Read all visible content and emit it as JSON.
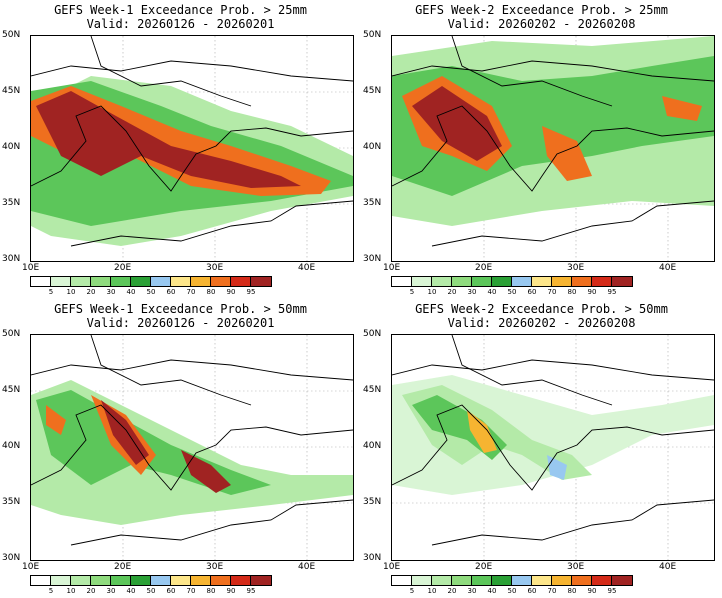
{
  "panels": [
    {
      "title": "GEFS Week-1 Exceedance Prob. > 25mm",
      "valid": "Valid: 20260126 - 20260201"
    },
    {
      "title": "GEFS Week-2 Exceedance Prob. > 25mm",
      "valid": "Valid: 20260202 - 20260208"
    },
    {
      "title": "GEFS Week-1 Exceedance Prob. > 50mm",
      "valid": "Valid: 20260126 - 20260201"
    },
    {
      "title": "GEFS Week-2 Exceedance Prob. > 50mm",
      "valid": "Valid: 20260202 - 20260208"
    }
  ],
  "lat_labels": [
    "50N",
    "45N",
    "40N",
    "35N",
    "30N"
  ],
  "lon_labels": [
    "10E",
    "20E",
    "30E",
    "40E"
  ],
  "colorbar": {
    "levels": [
      "5",
      "10",
      "20",
      "30",
      "40",
      "50",
      "60",
      "70",
      "80",
      "90",
      "95"
    ],
    "colors": [
      "#ffffff",
      "#d9f5d5",
      "#b4eaa8",
      "#8fdb7e",
      "#5cc65a",
      "#2aa035",
      "#98c8f0",
      "#fde68a",
      "#f6b431",
      "#ef6f1e",
      "#d42a18",
      "#a02322"
    ]
  }
}
